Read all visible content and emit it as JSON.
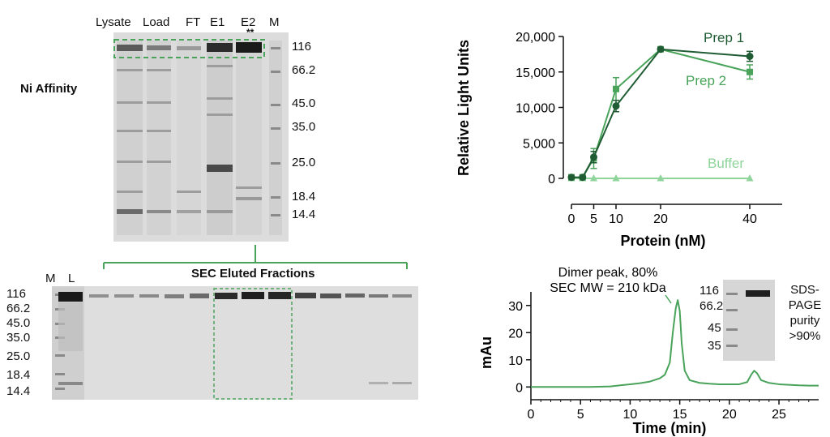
{
  "gel_top": {
    "lanes": [
      "Lysate",
      "Load",
      "FT",
      "E1",
      "E2",
      "M"
    ],
    "stars": "**",
    "mw_markers": [
      "116",
      "66.2",
      "45.0",
      "35.0",
      "25.0",
      "18.4",
      "14.4"
    ],
    "side_label": "Ni Affinity"
  },
  "gel_bottom": {
    "lane_labels": [
      "M",
      "L"
    ],
    "title": "SEC Eluted Fractions",
    "mw_markers": [
      "116",
      "66.2",
      "45.0",
      "35.0",
      "25.0",
      "18.4",
      "14.4"
    ]
  },
  "chart_data": [
    {
      "type": "line",
      "title": "",
      "xlabel": "Protein (nM)",
      "ylabel": "Relative Light Units",
      "xlim": [
        0,
        40
      ],
      "ylim": [
        0,
        20000
      ],
      "xticks": [
        0,
        5,
        10,
        20,
        40
      ],
      "yticks": [
        0,
        5000,
        10000,
        15000,
        20000
      ],
      "ytick_labels": [
        "0",
        "5,000",
        "10,000",
        "15,000",
        "20,000"
      ],
      "x": [
        0,
        2.5,
        5,
        10,
        20,
        40
      ],
      "series": [
        {
          "name": "Prep 1",
          "color": "#1f5c33",
          "marker": "circle",
          "values": [
            150,
            150,
            3000,
            10200,
            18200,
            17200
          ],
          "errors": [
            0,
            0,
            800,
            800,
            200,
            700
          ]
        },
        {
          "name": "Prep 2",
          "color": "#4aa35a",
          "marker": "square",
          "values": [
            150,
            150,
            2800,
            12600,
            18200,
            15000
          ],
          "errors": [
            0,
            0,
            1400,
            1600,
            200,
            1000
          ]
        },
        {
          "name": "Buffer",
          "color": "#8fd49a",
          "marker": "triangle",
          "values": [
            0,
            0,
            0,
            0,
            0,
            0
          ],
          "errors": [
            0,
            0,
            0,
            0,
            0,
            0
          ]
        }
      ]
    },
    {
      "type": "line",
      "title": "",
      "xlabel": "Time (min)",
      "ylabel": "mAu",
      "xlim": [
        0,
        29
      ],
      "ylim": [
        -2,
        35
      ],
      "xticks": [
        0,
        5,
        10,
        15,
        20,
        25
      ],
      "yticks": [
        0,
        10,
        20,
        30
      ],
      "series": [
        {
          "name": "",
          "color": "#4aa35a",
          "x": [
            0,
            3,
            6,
            8,
            9,
            10,
            11,
            12,
            12.5,
            13,
            13.5,
            14,
            14.3,
            14.6,
            14.8,
            15.0,
            15.2,
            15.5,
            16,
            17,
            18,
            19,
            20,
            21,
            21.8,
            22.2,
            22.5,
            22.8,
            23.2,
            24,
            25,
            26,
            27,
            28,
            29
          ],
          "values": [
            0,
            0,
            0,
            0.2,
            0.6,
            1.0,
            1.4,
            2.0,
            2.6,
            3.2,
            4.5,
            9,
            20,
            29,
            32,
            28,
            16,
            6,
            2.5,
            1.5,
            1.2,
            1.0,
            1.0,
            1.0,
            1.8,
            4.5,
            6,
            5,
            2.5,
            1.5,
            1.0,
            0.8,
            0.6,
            0.5,
            0.5
          ]
        }
      ],
      "annotation_line1": "Dimer peak, 80%",
      "annotation_line2": "SEC MW = 210 kDa",
      "inset": {
        "mw_markers": [
          "116",
          "66.2",
          "45",
          "35"
        ],
        "caption": [
          "SDS-",
          "PAGE",
          "purity",
          ">90%"
        ]
      }
    }
  ]
}
